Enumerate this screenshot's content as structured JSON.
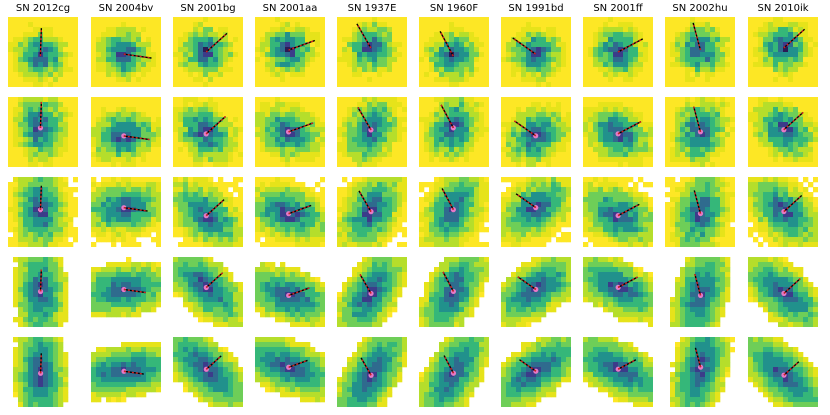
{
  "figure": {
    "columns": [
      {
        "label": "SN 2012cg",
        "angle_deg": 88
      },
      {
        "label": "SN 2004bv",
        "angle_deg": -8
      },
      {
        "label": "SN 2001bg",
        "angle_deg": 42
      },
      {
        "label": "SN 2001aa",
        "angle_deg": 20
      },
      {
        "label": "SN 1937E",
        "angle_deg": 120
      },
      {
        "label": "SN 1960F",
        "angle_deg": 118
      },
      {
        "label": "SN 1991bd",
        "angle_deg": 145
      },
      {
        "label": "SN 2001ff",
        "angle_deg": 28
      },
      {
        "label": "SN 2002hu",
        "angle_deg": 105
      },
      {
        "label": "SN 2010ik",
        "angle_deg": 42
      }
    ],
    "row_count": 5
  }
}
